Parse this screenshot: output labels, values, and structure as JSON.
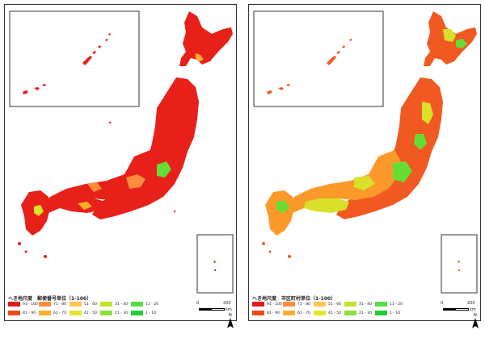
{
  "panels": [
    {
      "legend_title": "へき地尺度　郵便番号単位（1-100）",
      "legend": [
        {
          "label": "91 - 100",
          "color": "#e31a1c"
        },
        {
          "label": "81 - 90",
          "color": "#f04a18"
        },
        {
          "label": "71 - 80",
          "color": "#fd8d3c"
        },
        {
          "label": "61 - 70",
          "color": "#fdae2b"
        },
        {
          "label": "51 - 60",
          "color": "#fec44f"
        },
        {
          "label": "41 - 50",
          "color": "#e5e52f"
        },
        {
          "label": "31 - 40",
          "color": "#c2e32b"
        },
        {
          "label": "21 - 30",
          "color": "#8ee03a"
        },
        {
          "label": "11 - 20",
          "color": "#55dd44"
        },
        {
          "label": "1 - 10",
          "color": "#22cc33"
        }
      ],
      "scale": {
        "zero": "0",
        "max": "200",
        "unit": "km"
      },
      "north": "N"
    },
    {
      "legend_title": "へき地尺度　市区町村単位（1-100）",
      "legend": [
        {
          "label": "91 - 100",
          "color": "#e31a1c"
        },
        {
          "label": "81 - 90",
          "color": "#f04a18"
        },
        {
          "label": "71 - 80",
          "color": "#fd8d3c"
        },
        {
          "label": "61 - 70",
          "color": "#fdae2b"
        },
        {
          "label": "51 - 60",
          "color": "#fec44f"
        },
        {
          "label": "41 - 50",
          "color": "#e5e52f"
        },
        {
          "label": "31 - 40",
          "color": "#c2e32b"
        },
        {
          "label": "21 - 30",
          "color": "#8ee03a"
        },
        {
          "label": "11 - 20",
          "color": "#55dd44"
        },
        {
          "label": "1 - 10",
          "color": "#22cc33"
        }
      ],
      "scale": {
        "zero": "0",
        "max": "200",
        "unit": "km"
      },
      "north": "N"
    }
  ],
  "colors": {
    "left_land": "#e8201a",
    "right_land": "#f05a22",
    "green_patch": "#66dd33",
    "yellow_patch": "#d9e02a",
    "orange_patch": "#fb9a2a"
  }
}
